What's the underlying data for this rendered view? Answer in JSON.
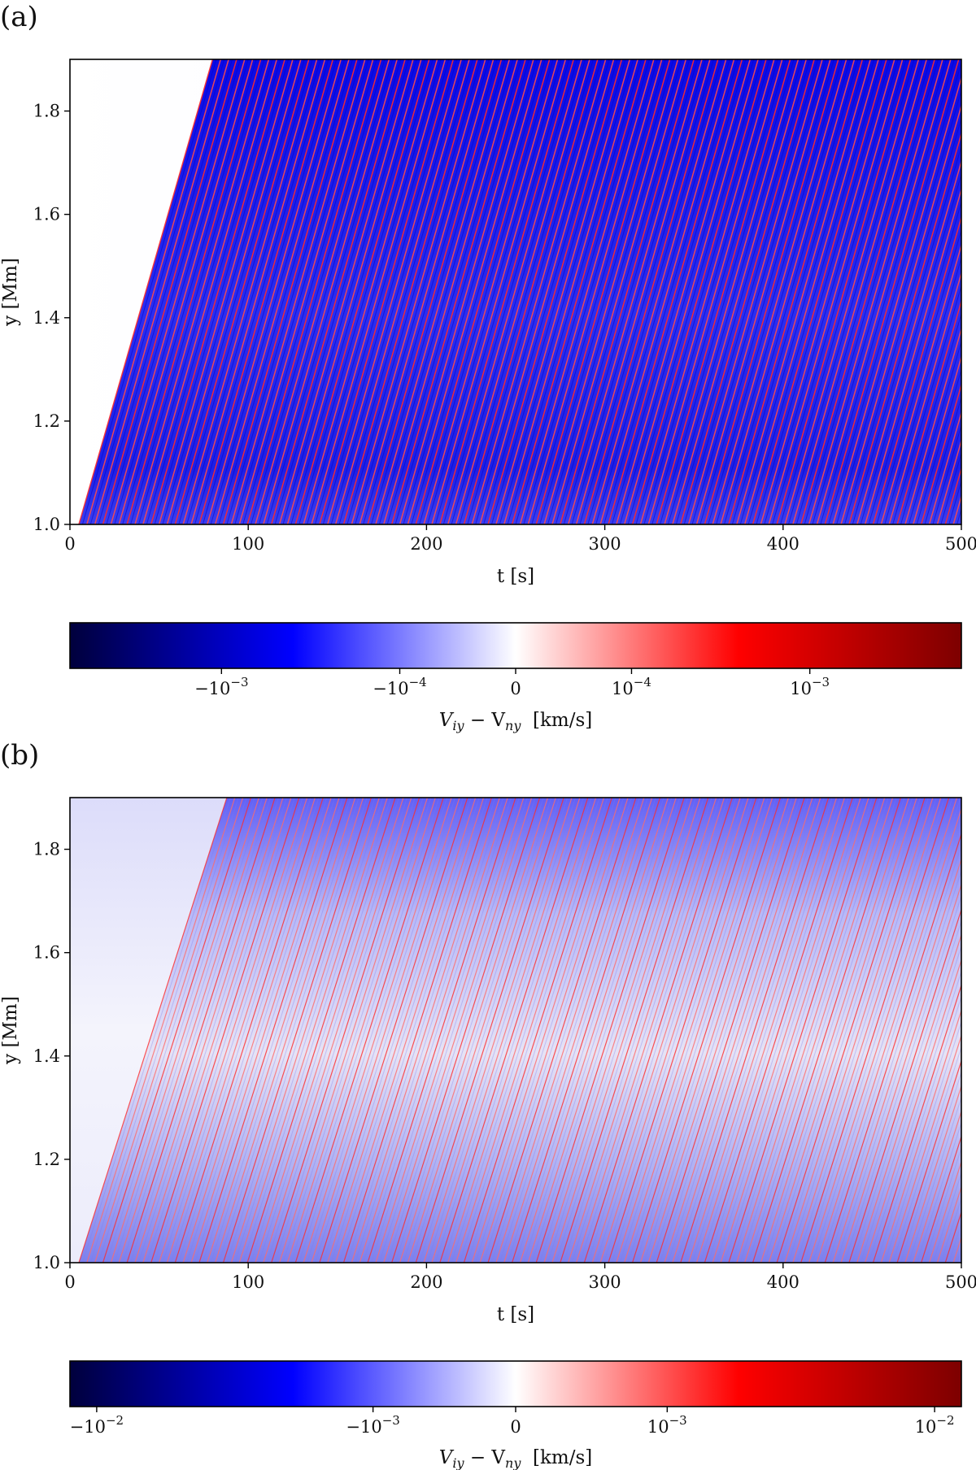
{
  "colors": {
    "neg_extreme": "#00003c",
    "neg_strong": "#0000ff",
    "neutral": "#ffffff",
    "pos_strong": "#ff0000",
    "pos_extreme": "#7d0000",
    "frame": "#000000"
  },
  "chart_data": [
    {
      "panel_label": "(a)",
      "type": "heatmap",
      "xlabel": "t [s]",
      "ylabel": "y [Mm]",
      "xlim": [
        0,
        500
      ],
      "ylim": [
        1.0,
        1.9
      ],
      "x_ticks": [
        "0",
        "100",
        "200",
        "300",
        "400",
        "500"
      ],
      "x_tick_values": [
        0,
        100,
        200,
        300,
        400,
        500
      ],
      "y_ticks": [
        "1.0",
        "1.2",
        "1.4",
        "1.6",
        "1.8"
      ],
      "y_tick_values": [
        1.0,
        1.2,
        1.4,
        1.6,
        1.8
      ],
      "colormap": "seismic (symmetric log)",
      "wave_front": {
        "t_at_ymin": 5,
        "t_at_ymax": 80
      },
      "wave_period_s": 4.5,
      "background_level": "strong negative",
      "colorbar": {
        "label_parts": [
          "V",
          "iy",
          " − V",
          "ny",
          "  [km/s]"
        ],
        "ticks": [
          {
            "base": "−10",
            "exp": "−3",
            "pos": 0.17
          },
          {
            "base": "−10",
            "exp": "−4",
            "pos": 0.37
          },
          {
            "base": "0",
            "exp": "",
            "pos": 0.5
          },
          {
            "base": "10",
            "exp": "−4",
            "pos": 0.63
          },
          {
            "base": "10",
            "exp": "−3",
            "pos": 0.83
          }
        ]
      }
    },
    {
      "panel_label": "(b)",
      "type": "heatmap",
      "xlabel": "t [s]",
      "ylabel": "y [Mm]",
      "xlim": [
        0,
        500
      ],
      "ylim": [
        1.0,
        1.9
      ],
      "x_ticks": [
        "0",
        "100",
        "200",
        "300",
        "400",
        "500"
      ],
      "x_tick_values": [
        0,
        100,
        200,
        300,
        400,
        500
      ],
      "y_ticks": [
        "1.0",
        "1.2",
        "1.4",
        "1.6",
        "1.8"
      ],
      "y_tick_values": [
        1.0,
        1.2,
        1.4,
        1.6,
        1.8
      ],
      "colormap": "seismic (symmetric log)",
      "wave_front": {
        "t_at_ymin": 5,
        "t_at_ymax": 88
      },
      "wave_period_s": 4.5,
      "background_level": "weak negative",
      "colorbar": {
        "label_parts": [
          "V",
          "iy",
          " − V",
          "ny",
          "  [km/s]"
        ],
        "ticks": [
          {
            "base": "−10",
            "exp": "−2",
            "pos": 0.03
          },
          {
            "base": "−10",
            "exp": "−3",
            "pos": 0.34
          },
          {
            "base": "0",
            "exp": "",
            "pos": 0.5
          },
          {
            "base": "10",
            "exp": "−3",
            "pos": 0.67
          },
          {
            "base": "10",
            "exp": "−2",
            "pos": 0.97
          }
        ]
      }
    }
  ]
}
